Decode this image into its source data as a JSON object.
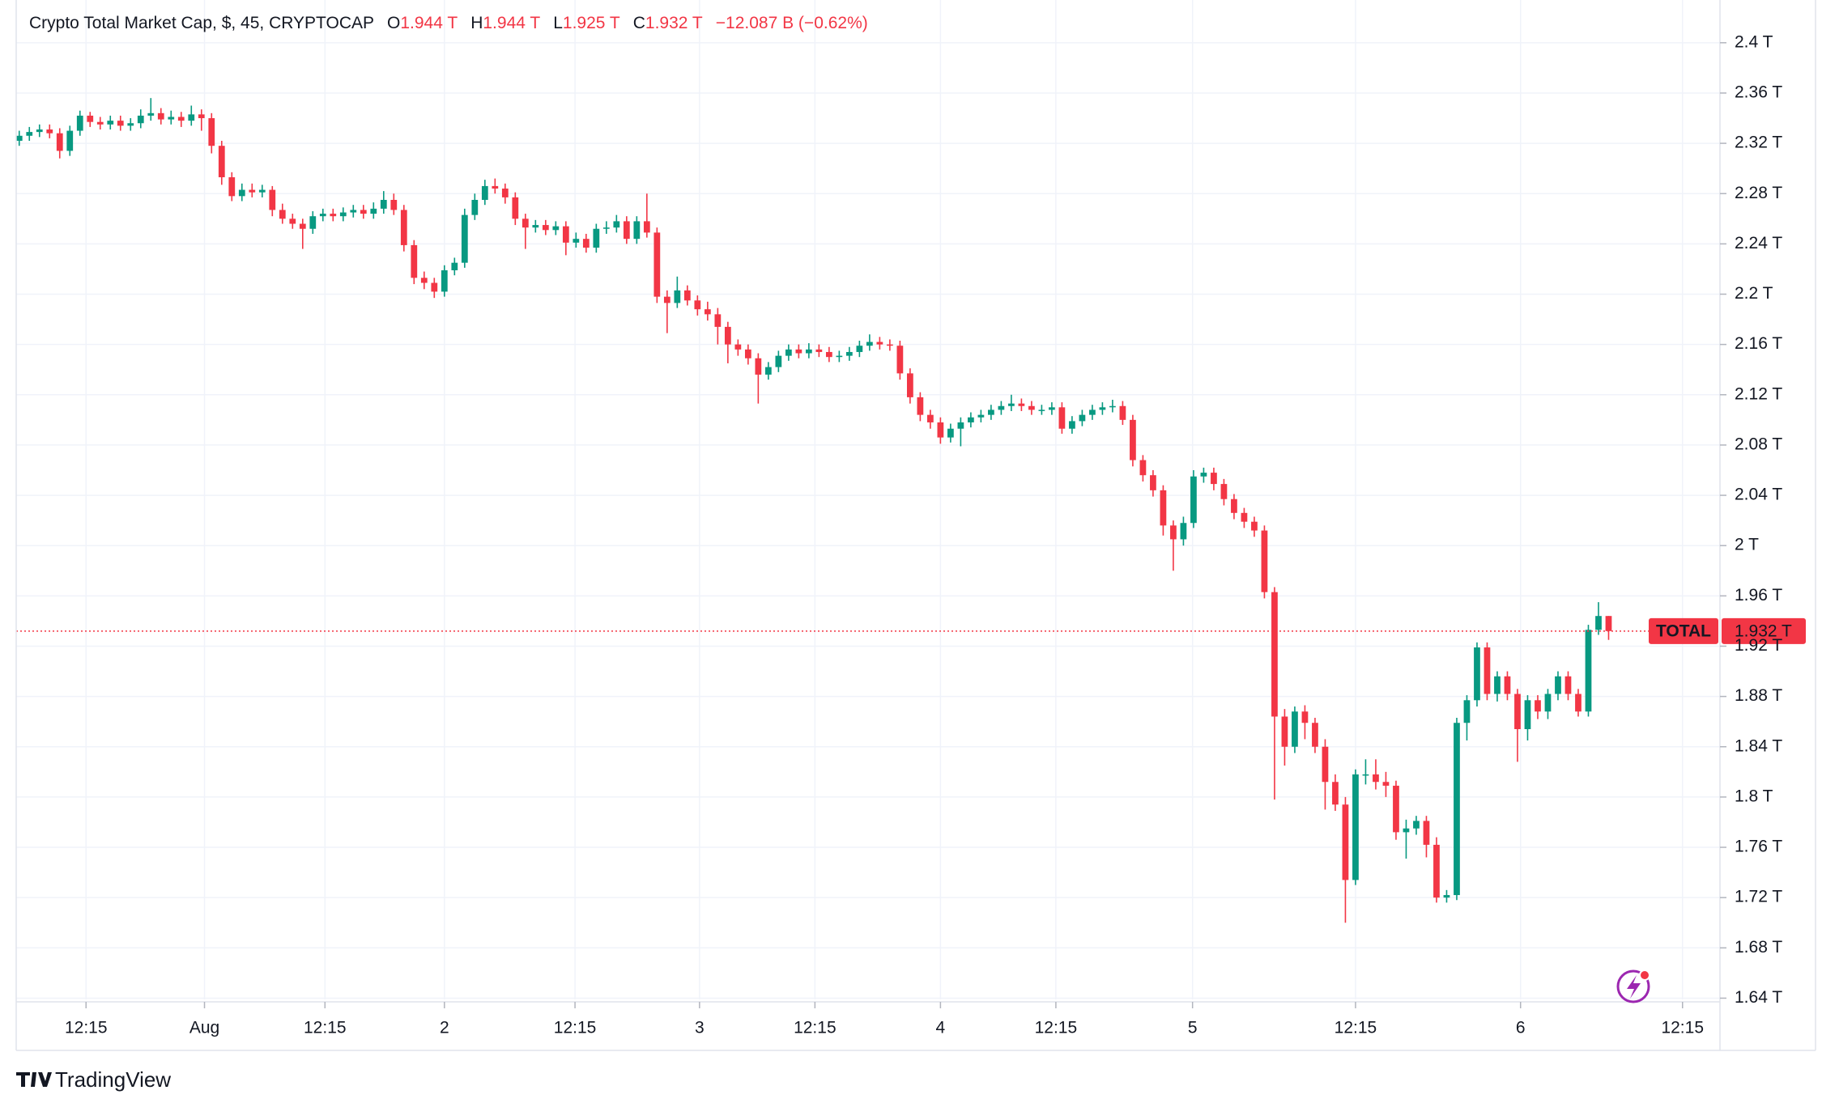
{
  "chart_data": {
    "type": "candlestick",
    "title": "Crypto Total Market Cap, $, 45, CRYPTOCAP",
    "ohlc_legend": [
      {
        "key": "O",
        "text": "1.944 T"
      },
      {
        "key": "H",
        "text": "1.944 T"
      },
      {
        "key": "L",
        "text": "1.925 T"
      },
      {
        "key": "C",
        "text": "1.932 T"
      }
    ],
    "change": "−12.087 B (−0.62%)",
    "up_color": "#089981",
    "down_color": "#f23645",
    "open": [
      2.322,
      2.326,
      2.329,
      2.331,
      2.328,
      2.314,
      2.33,
      2.342,
      2.337,
      2.335,
      2.338,
      2.334,
      2.336,
      2.342,
      2.344,
      2.339,
      2.341,
      2.338,
      2.343,
      2.34,
      2.318,
      2.293,
      2.278,
      2.283,
      2.281,
      2.283,
      2.267,
      2.26,
      2.256,
      2.252,
      2.262,
      2.264,
      2.262,
      2.265,
      2.267,
      2.264,
      2.268,
      2.275,
      2.267,
      2.239,
      2.213,
      2.209,
      2.202,
      2.219,
      2.225,
      2.263,
      2.275,
      2.286,
      2.284,
      2.277,
      2.26,
      2.253,
      2.255,
      2.251,
      2.254,
      2.241,
      2.244,
      2.237,
      2.252,
      2.253,
      2.258,
      2.244,
      2.258,
      2.249,
      2.198,
      2.193,
      2.203,
      2.195,
      2.188,
      2.184,
      2.174,
      2.16,
      2.156,
      2.149,
      2.136,
      2.142,
      2.151,
      2.156,
      2.153,
      2.156,
      2.154,
      2.15,
      2.151,
      2.154,
      2.159,
      2.162,
      2.16,
      2.159,
      2.137,
      2.118,
      2.104,
      2.098,
      2.086,
      2.093,
      2.098,
      2.102,
      2.104,
      2.108,
      2.111,
      2.113,
      2.111,
      2.108,
      2.108,
      2.11,
      2.093,
      2.099,
      2.104,
      2.108,
      2.11,
      2.111,
      2.1,
      2.068,
      2.056,
      2.044,
      2.016,
      2.005,
      2.018,
      2.055,
      2.058,
      2.049,
      2.037,
      2.026,
      2.019,
      2.012,
      1.963,
      1.864,
      1.84,
      1.868,
      1.859,
      1.84,
      1.812,
      1.794,
      1.734,
      1.818,
      1.818,
      1.812,
      1.809,
      1.772,
      1.775,
      1.781,
      1.762,
      1.72,
      1.722,
      1.859,
      1.877,
      1.919,
      1.882,
      1.896,
      1.882,
      1.854,
      1.877,
      1.868,
      1.882,
      1.896,
      1.882,
      1.868,
      1.933,
      1.944
    ],
    "high": [
      2.33,
      2.333,
      2.335,
      2.335,
      2.332,
      2.334,
      2.346,
      2.345,
      2.341,
      2.342,
      2.342,
      2.34,
      2.347,
      2.356,
      2.348,
      2.346,
      2.345,
      2.35,
      2.347,
      2.344,
      2.322,
      2.297,
      2.288,
      2.288,
      2.287,
      2.286,
      2.272,
      2.264,
      2.26,
      2.266,
      2.268,
      2.268,
      2.269,
      2.271,
      2.271,
      2.273,
      2.282,
      2.28,
      2.271,
      2.243,
      2.218,
      2.213,
      2.223,
      2.229,
      2.268,
      2.28,
      2.291,
      2.292,
      2.288,
      2.281,
      2.264,
      2.259,
      2.259,
      2.258,
      2.258,
      2.249,
      2.248,
      2.256,
      2.258,
      2.263,
      2.262,
      2.262,
      2.28,
      2.253,
      2.203,
      2.214,
      2.207,
      2.199,
      2.194,
      2.189,
      2.178,
      2.164,
      2.16,
      2.153,
      2.146,
      2.155,
      2.16,
      2.16,
      2.161,
      2.16,
      2.158,
      2.155,
      2.158,
      2.163,
      2.168,
      2.166,
      2.164,
      2.163,
      2.141,
      2.122,
      2.108,
      2.102,
      2.097,
      2.102,
      2.106,
      2.108,
      2.112,
      2.115,
      2.12,
      2.117,
      2.115,
      2.112,
      2.114,
      2.114,
      2.103,
      2.108,
      2.112,
      2.114,
      2.116,
      2.115,
      2.104,
      2.072,
      2.06,
      2.048,
      2.02,
      2.023,
      2.06,
      2.062,
      2.062,
      2.053,
      2.041,
      2.03,
      2.023,
      2.016,
      1.967,
      1.87,
      1.872,
      1.873,
      1.863,
      1.846,
      1.818,
      1.8,
      1.822,
      1.83,
      1.83,
      1.82,
      1.813,
      1.782,
      1.785,
      1.785,
      1.768,
      1.726,
      1.863,
      1.881,
      1.923,
      1.923,
      1.9,
      1.9,
      1.886,
      1.881,
      1.881,
      1.886,
      1.9,
      1.9,
      1.886,
      1.937,
      1.955,
      1.944
    ],
    "low": [
      2.318,
      2.322,
      2.325,
      2.324,
      2.308,
      2.31,
      2.326,
      2.333,
      2.331,
      2.331,
      2.33,
      2.33,
      2.332,
      2.338,
      2.335,
      2.335,
      2.333,
      2.334,
      2.33,
      2.312,
      2.287,
      2.274,
      2.274,
      2.277,
      2.277,
      2.262,
      2.256,
      2.252,
      2.236,
      2.248,
      2.258,
      2.258,
      2.258,
      2.261,
      2.26,
      2.26,
      2.264,
      2.263,
      2.234,
      2.208,
      2.204,
      2.197,
      2.198,
      2.215,
      2.221,
      2.259,
      2.271,
      2.28,
      2.272,
      2.255,
      2.236,
      2.249,
      2.247,
      2.247,
      2.231,
      2.237,
      2.233,
      2.233,
      2.248,
      2.249,
      2.24,
      2.24,
      2.245,
      2.193,
      2.169,
      2.189,
      2.191,
      2.183,
      2.179,
      2.16,
      2.145,
      2.151,
      2.144,
      2.113,
      2.132,
      2.138,
      2.147,
      2.149,
      2.149,
      2.15,
      2.146,
      2.146,
      2.147,
      2.15,
      2.155,
      2.156,
      2.155,
      2.132,
      2.113,
      2.099,
      2.093,
      2.081,
      2.082,
      2.079,
      2.094,
      2.098,
      2.1,
      2.104,
      2.107,
      2.107,
      2.104,
      2.104,
      2.104,
      2.089,
      2.089,
      2.095,
      2.1,
      2.104,
      2.106,
      2.096,
      2.063,
      2.051,
      2.039,
      2.008,
      1.98,
      2.0,
      2.014,
      2.05,
      2.044,
      2.032,
      2.021,
      2.014,
      2.007,
      1.958,
      1.798,
      1.825,
      1.835,
      1.846,
      1.835,
      1.79,
      1.789,
      1.7,
      1.73,
      1.81,
      1.806,
      1.8,
      1.766,
      1.751,
      1.77,
      1.752,
      1.716,
      1.716,
      1.718,
      1.845,
      1.872,
      1.877,
      1.876,
      1.877,
      1.828,
      1.845,
      1.862,
      1.862,
      1.877,
      1.877,
      1.864,
      1.864,
      1.929,
      1.925
    ],
    "close": [
      2.326,
      2.329,
      2.331,
      2.328,
      2.314,
      2.33,
      2.342,
      2.337,
      2.335,
      2.338,
      2.334,
      2.336,
      2.342,
      2.344,
      2.339,
      2.341,
      2.338,
      2.343,
      2.34,
      2.318,
      2.293,
      2.278,
      2.283,
      2.281,
      2.283,
      2.267,
      2.26,
      2.256,
      2.252,
      2.262,
      2.264,
      2.262,
      2.265,
      2.267,
      2.264,
      2.268,
      2.275,
      2.267,
      2.239,
      2.213,
      2.209,
      2.202,
      2.219,
      2.225,
      2.263,
      2.275,
      2.286,
      2.284,
      2.277,
      2.26,
      2.253,
      2.255,
      2.251,
      2.254,
      2.241,
      2.244,
      2.237,
      2.252,
      2.253,
      2.258,
      2.244,
      2.258,
      2.249,
      2.198,
      2.193,
      2.203,
      2.195,
      2.188,
      2.184,
      2.174,
      2.16,
      2.156,
      2.149,
      2.136,
      2.142,
      2.151,
      2.156,
      2.153,
      2.156,
      2.154,
      2.15,
      2.151,
      2.154,
      2.159,
      2.162,
      2.16,
      2.159,
      2.137,
      2.118,
      2.104,
      2.098,
      2.086,
      2.093,
      2.098,
      2.102,
      2.104,
      2.108,
      2.111,
      2.113,
      2.111,
      2.108,
      2.108,
      2.11,
      2.093,
      2.099,
      2.104,
      2.108,
      2.11,
      2.111,
      2.1,
      2.068,
      2.056,
      2.044,
      2.016,
      2.005,
      2.018,
      2.055,
      2.058,
      2.049,
      2.037,
      2.026,
      2.019,
      2.012,
      1.963,
      1.864,
      1.84,
      1.868,
      1.859,
      1.84,
      1.812,
      1.794,
      1.734,
      1.818,
      1.818,
      1.812,
      1.809,
      1.772,
      1.775,
      1.781,
      1.762,
      1.72,
      1.722,
      1.859,
      1.877,
      1.919,
      1.882,
      1.896,
      1.882,
      1.854,
      1.877,
      1.868,
      1.882,
      1.896,
      1.882,
      1.868,
      1.933,
      1.944,
      1.932
    ],
    "xlim": [
      -0.3,
      168
    ],
    "xticks": [
      {
        "value": 6.6,
        "label": "12:15"
      },
      {
        "value": 18.3,
        "label": "Aug"
      },
      {
        "value": 30.2,
        "label": "12:15"
      },
      {
        "value": 42,
        "label": "2"
      },
      {
        "value": 54.9,
        "label": "12:15"
      },
      {
        "value": 67.2,
        "label": "3"
      },
      {
        "value": 78.6,
        "label": "12:15"
      },
      {
        "value": 91,
        "label": "4"
      },
      {
        "value": 102.4,
        "label": "12:15"
      },
      {
        "value": 115.9,
        "label": "5"
      },
      {
        "value": 132,
        "label": "12:15"
      },
      {
        "value": 148.3,
        "label": "6"
      },
      {
        "value": 164.3,
        "label": "12:15"
      }
    ],
    "ylim": [
      1.639,
      2.434
    ],
    "yticks": [
      {
        "value": 2.4,
        "label": "2.4 T"
      },
      {
        "value": 2.36,
        "label": "2.36 T"
      },
      {
        "value": 2.32,
        "label": "2.32 T"
      },
      {
        "value": 2.28,
        "label": "2.28 T"
      },
      {
        "value": 2.24,
        "label": "2.24 T"
      },
      {
        "value": 2.2,
        "label": "2.2 T"
      },
      {
        "value": 2.16,
        "label": "2.16 T"
      },
      {
        "value": 2.12,
        "label": "2.12 T"
      },
      {
        "value": 2.08,
        "label": "2.08 T"
      },
      {
        "value": 2.04,
        "label": "2.04 T"
      },
      {
        "value": 2,
        "label": "2 T"
      },
      {
        "value": 1.96,
        "label": "1.96 T"
      },
      {
        "value": 1.92,
        "label": "1.92 T"
      },
      {
        "value": 1.88,
        "label": "1.88 T"
      },
      {
        "value": 1.84,
        "label": "1.84 T"
      },
      {
        "value": 1.8,
        "label": "1.8 T"
      },
      {
        "value": 1.76,
        "label": "1.76 T"
      },
      {
        "value": 1.72,
        "label": "1.72 T"
      },
      {
        "value": 1.68,
        "label": "1.68 T"
      },
      {
        "value": 1.64,
        "label": "1.64 T"
      }
    ],
    "grid": true,
    "price_line": {
      "name": "TOTAL",
      "value": 1.932,
      "label": "1.932 T",
      "color": "#f23645"
    },
    "brand": "TradingView"
  }
}
